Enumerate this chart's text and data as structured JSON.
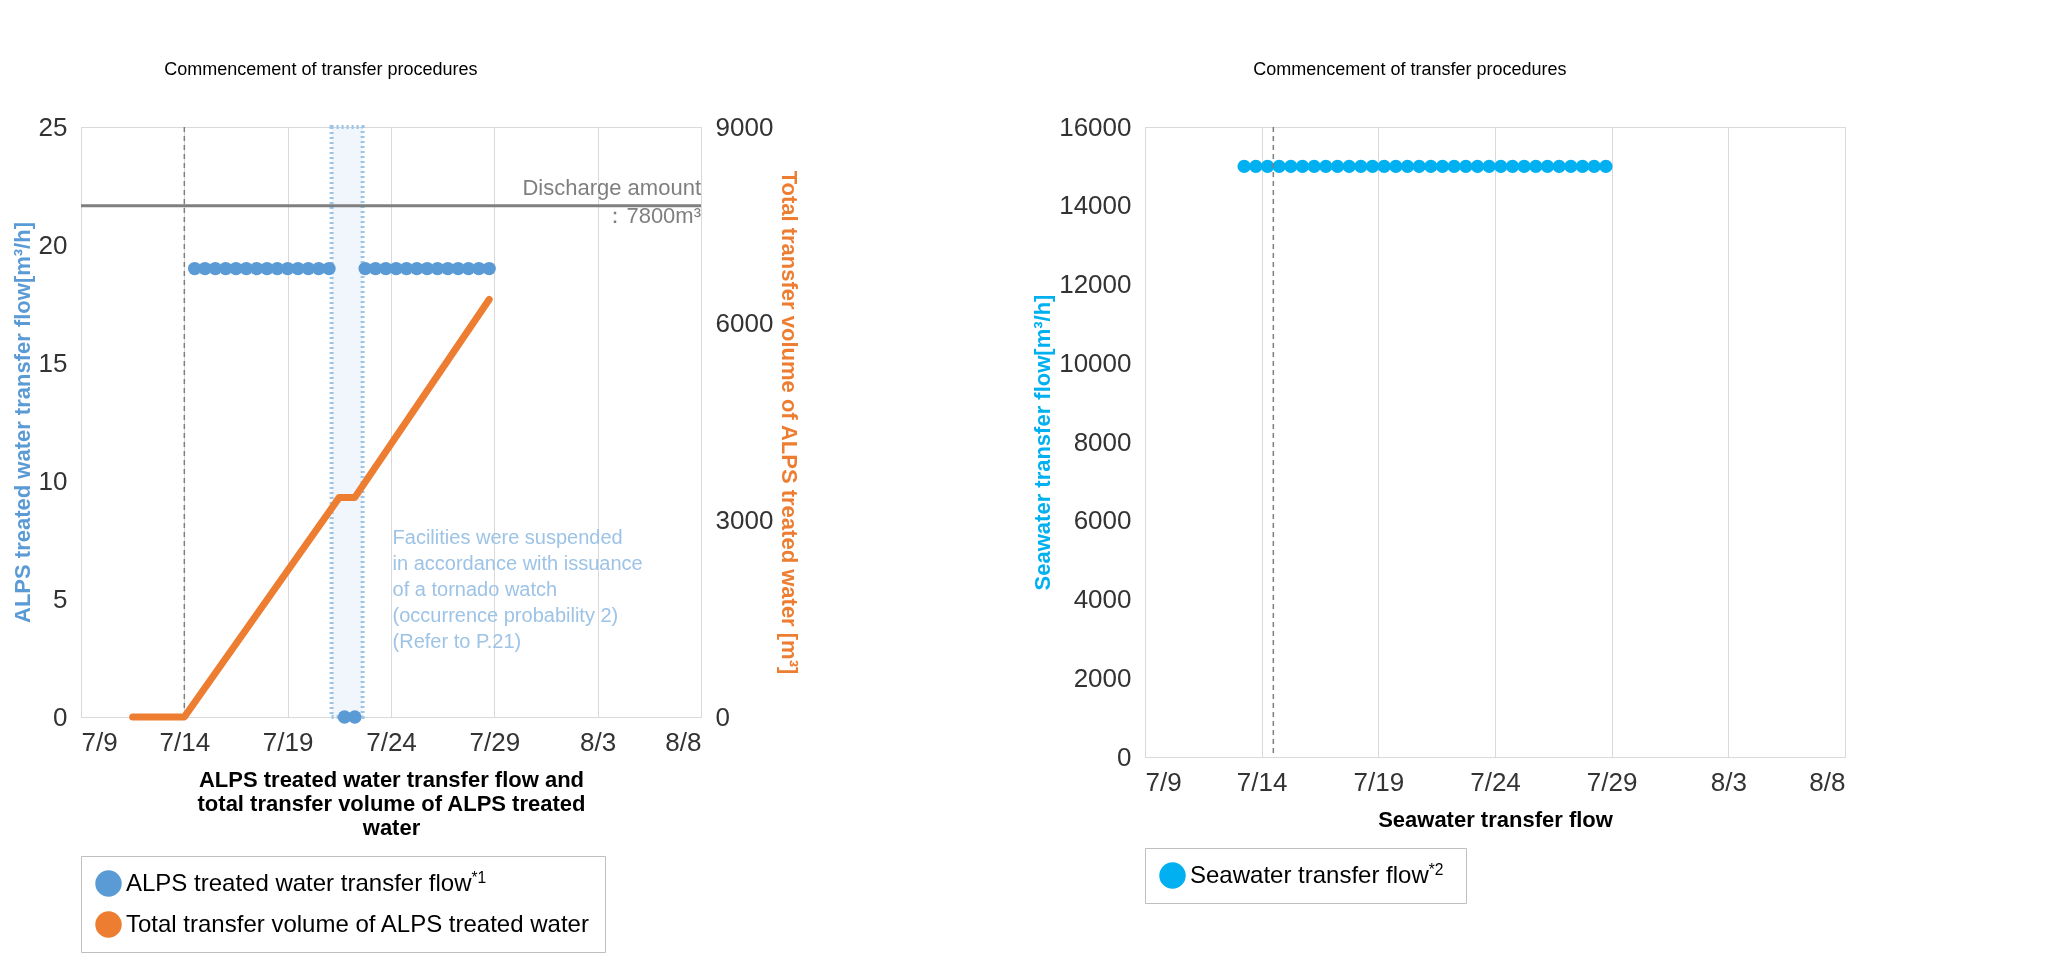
{
  "chart_data": [
    {
      "type": "line",
      "xlabel": "ALPS treated water transfer flow and total transfer volume of ALPS treated water",
      "ylabel": "ALPS treated water transfer flow[m³/h]",
      "y2label": "Total transfer volume of ALPS treated water [m³]",
      "xlim": [
        "--07-09",
        "--08-08"
      ],
      "xticks": [
        {
          "value": "--07-09",
          "label": "7/9"
        },
        {
          "value": "--07-14",
          "label": "7/14"
        },
        {
          "value": "--07-19",
          "label": "7/19"
        },
        {
          "value": "--07-24",
          "label": "7/24"
        },
        {
          "value": "--07-29",
          "label": "7/29"
        },
        {
          "value": "--08-03",
          "label": "8/3"
        },
        {
          "value": "--08-08",
          "label": "8/8"
        }
      ],
      "ylim": [
        0,
        25
      ],
      "yticks": [
        0,
        5,
        10,
        15,
        20,
        25
      ],
      "y2lim": [
        0,
        9000
      ],
      "y2ticks": [
        0,
        3000,
        6000,
        9000
      ],
      "grid": "x",
      "legend": "bottom",
      "series": [
        {
          "name": "ALPS treated water transfer flow$^{*1}$",
          "type": "scatter",
          "marker": "circle",
          "color": "#5b9bd5",
          "x": [
            "--07-14T12:00",
            "--07-15T00:00",
            "--07-15T12:00",
            "--07-16T00:00",
            "--07-16T12:00",
            "--07-17T00:00",
            "--07-17T12:00",
            "--07-18T00:00",
            "--07-18T12:00",
            "--07-19T00:00",
            "--07-19T12:00",
            "--07-20T00:00",
            "--07-20T12:00",
            "--07-21T00:00",
            "--07-21T18:00",
            "--07-22T06:00",
            "--07-22T18:00",
            "--07-23T06:00",
            "--07-23T18:00",
            "--07-24T06:00",
            "--07-24T18:00",
            "--07-25T06:00",
            "--07-25T18:00",
            "--07-26T06:00",
            "--07-26T18:00",
            "--07-27T06:00",
            "--07-27T18:00",
            "--07-28T06:00",
            "--07-28T18:00"
          ],
          "values": [
            19,
            19,
            19,
            19,
            19,
            19,
            19,
            19,
            19,
            19,
            19,
            19,
            19,
            19,
            0,
            0,
            19,
            19,
            19,
            19,
            19,
            19,
            19,
            19,
            19,
            19,
            19,
            19,
            19
          ]
        },
        {
          "name": "Total transfer volume of ALPS treated water",
          "type": "line",
          "axis": "y2",
          "color": "#ed7d31",
          "x": [
            "--07-11T12:00",
            "--07-14T00:00",
            "--07-21T12:00",
            "--07-22T06:00",
            "--07-28T18:00"
          ],
          "values": [
            0,
            0,
            3350,
            3350,
            6370
          ]
        }
      ],
      "ref_lines": [
        {
          "axis": "x",
          "value": "--07-14",
          "label": "Commencement of transfer procedures",
          "color": "#7f7f7f",
          "line_style": "dashed"
        },
        {
          "axis": "y2",
          "value": 7800,
          "label": "Discharge amount ：7800m³",
          "color": "#7f7f7f",
          "line_style": "solid"
        }
      ],
      "bands": [
        {
          "axis": "x",
          "from": "--07-21T03:00",
          "to": "--07-22T15:00",
          "label": "Facilities were suspended in accordance with issuance of a tornado watch (occurrence probability 2) (Refer to P.21)",
          "color": "#9dc3e6"
        }
      ]
    },
    {
      "type": "scatter",
      "xlabel": "Seawater transfer flow",
      "ylabel": "Seawater transfer flow[m³/h]",
      "xlim": [
        "--07-09",
        "--08-08"
      ],
      "xticks": [
        {
          "value": "--07-09",
          "label": "7/9"
        },
        {
          "value": "--07-14",
          "label": "7/14"
        },
        {
          "value": "--07-19",
          "label": "7/19"
        },
        {
          "value": "--07-24",
          "label": "7/24"
        },
        {
          "value": "--07-29",
          "label": "7/29"
        },
        {
          "value": "--08-03",
          "label": "8/3"
        },
        {
          "value": "--08-08",
          "label": "8/8"
        }
      ],
      "ylim": [
        0,
        16000
      ],
      "yticks": [
        0,
        2000,
        4000,
        6000,
        8000,
        10000,
        12000,
        14000,
        16000
      ],
      "grid": "x",
      "legend": "bottom",
      "marker": "circle",
      "series": [
        {
          "name": "Seawater transfer flow$^{*2}$",
          "color": "#00b0f0",
          "x": [
            "--07-13T06:00",
            "--07-13T18:00",
            "--07-14T06:00",
            "--07-14T18:00",
            "--07-15T06:00",
            "--07-15T18:00",
            "--07-16T06:00",
            "--07-16T18:00",
            "--07-17T06:00",
            "--07-17T18:00",
            "--07-18T06:00",
            "--07-18T18:00",
            "--07-19T06:00",
            "--07-19T18:00",
            "--07-20T06:00",
            "--07-20T18:00",
            "--07-21T06:00",
            "--07-21T18:00",
            "--07-22T06:00",
            "--07-22T18:00",
            "--07-23T06:00",
            "--07-23T18:00",
            "--07-24T06:00",
            "--07-24T18:00",
            "--07-25T06:00",
            "--07-25T18:00",
            "--07-26T06:00",
            "--07-26T18:00",
            "--07-27T06:00",
            "--07-27T18:00",
            "--07-28T06:00",
            "--07-28T18:00"
          ],
          "values": [
            15000,
            15000,
            15000,
            15000,
            15000,
            15000,
            15000,
            15000,
            15000,
            15000,
            15000,
            15000,
            15000,
            15000,
            15000,
            15000,
            15000,
            15000,
            15000,
            15000,
            15000,
            15000,
            15000,
            15000,
            15000,
            15000,
            15000,
            15000,
            15000,
            15000,
            15000,
            15000
          ]
        }
      ],
      "ref_lines": [
        {
          "axis": "x",
          "value": "--07-14T12:00",
          "label": "Commencement of transfer procedures",
          "color": "#7f7f7f",
          "line_style": "dashed"
        }
      ]
    }
  ]
}
